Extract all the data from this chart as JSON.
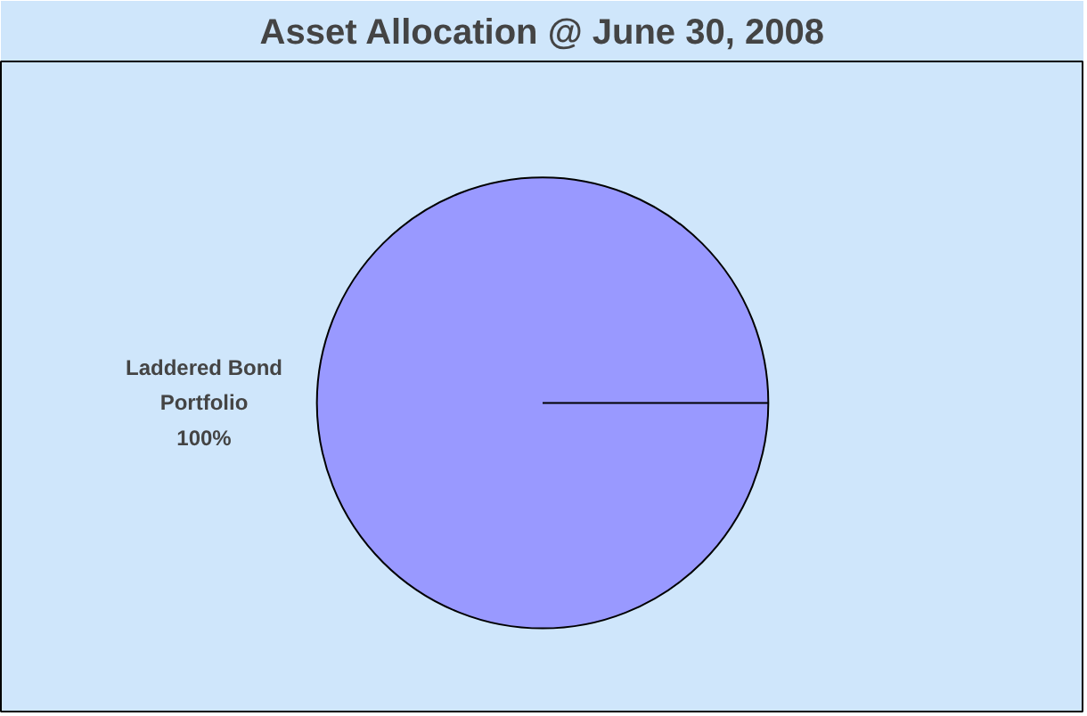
{
  "chart_data": {
    "type": "pie",
    "title": "Asset Allocation @ June 30, 2008",
    "categories": [
      "Laddered Bond Portfolio"
    ],
    "values": [
      100
    ],
    "colors": [
      "#9999ff"
    ],
    "value_labels": [
      "100%"
    ]
  }
}
